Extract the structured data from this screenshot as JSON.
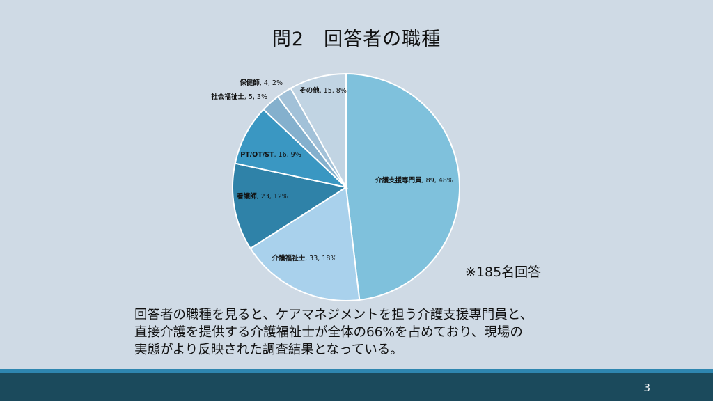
{
  "slide": {
    "title": "問2　回答者の職種",
    "note": "※185名回答",
    "summary": [
      "回答者の職種を見ると、ケアマネジメントを担う介護支援専門員と、",
      "直接介護を提供する介護福祉士が全体の66%を占めており、現場の",
      "実態がより反映された調査結果となっている。"
    ],
    "page_number": "3"
  },
  "chart_data": {
    "type": "pie",
    "total": 185,
    "slices": [
      {
        "label": "介護支援専門員",
        "value": 89,
        "percent": "48%",
        "color": "#7fc1dc"
      },
      {
        "label": "介護福祉士",
        "value": 33,
        "percent": "18%",
        "color": "#a9d1ec"
      },
      {
        "label": "看護師",
        "value": 23,
        "percent": "12%",
        "color": "#2f82a8"
      },
      {
        "label": "PT/OT/ST",
        "value": 16,
        "percent": "9%",
        "color": "#3a97c2"
      },
      {
        "label": "社会福祉士",
        "value": 5,
        "percent": "3%",
        "color": "#84b0cd"
      },
      {
        "label": "保健師",
        "value": 4,
        "percent": "2%",
        "color": "#a2c1d8"
      },
      {
        "label": "その他",
        "value": 15,
        "percent": "8%",
        "color": "#c1d4e3"
      }
    ]
  }
}
